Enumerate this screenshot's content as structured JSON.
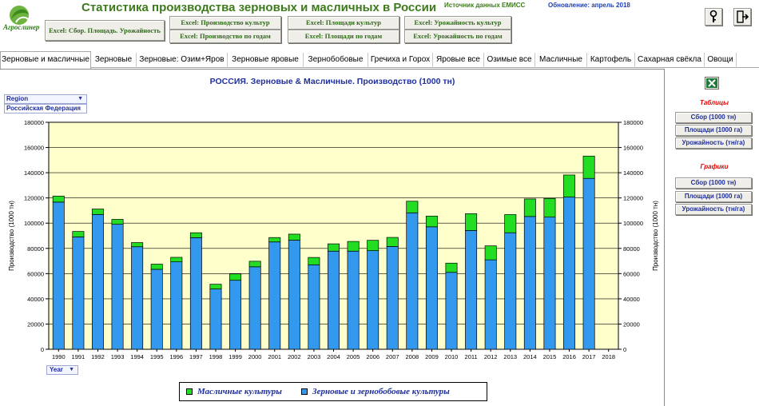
{
  "header": {
    "logo_text": "Агрослинер",
    "title": "Статистика производства зерновых и масличных в России",
    "source": "Источник данных ЕМИСС",
    "update": "Обновление: апрель 2018"
  },
  "excel_buttons": {
    "main": "Excel: Сбор. Площадь. Урожайность",
    "prod_crops": "Excel: Производство культур",
    "prod_years": "Excel: Производство по годам",
    "area_crops": "Excel: Площади культур",
    "area_years": "Excel: Площади по годам",
    "yield_crops": "Excel: Урожайность культур",
    "yield_years": "Excel: Урожайность по годам"
  },
  "toolbar": {
    "help_icon": "help-icon",
    "exit_icon": "exit-icon"
  },
  "tabs": [
    "Зерновые и масличные",
    "Зерновые",
    "Зерновые: Озим+Яров",
    "Зерновые яровые",
    "Зернобобовые",
    "Гречиха и Горох",
    "Яровые все",
    "Озимые все",
    "Масличные",
    "Картофель",
    "Сахарная свёкла",
    "Овощи"
  ],
  "active_tab": 0,
  "filters": {
    "region_label": "Region",
    "region_value": "Российская Федерация",
    "year_label": "Year"
  },
  "right_panel": {
    "tables_heading": "Таблицы",
    "charts_heading": "Графики",
    "tables_buttons": [
      "Сбор (1000 тн)",
      "Площади (1000 га)",
      "Урожайность (тн/га)"
    ],
    "charts_buttons": [
      "Сбор (1000 тн)",
      "Площади (1000 га)",
      "Урожайность (тн/га)"
    ]
  },
  "colors": {
    "grain": "#3399ee",
    "oil": "#22dd22",
    "plot_bg": "#ffffcc",
    "title": "#1f2f9c",
    "header_green": "#3d7a1c"
  },
  "chart_data": {
    "type": "bar",
    "stacked": true,
    "title": "РОССИЯ. Зерновые & Масличные. Производство (1000 тн)",
    "ylabel": "Производство (1000 тн)",
    "ylabel_right": "Производство (1000 тн)",
    "ylim": [
      0,
      180000
    ],
    "yticks": [
      0,
      20000,
      40000,
      60000,
      80000,
      100000,
      120000,
      140000,
      160000,
      180000
    ],
    "grid": true,
    "categories": [
      "1990",
      "1991",
      "1992",
      "1993",
      "1994",
      "1995",
      "1996",
      "1997",
      "1998",
      "1999",
      "2000",
      "2001",
      "2002",
      "2003",
      "2004",
      "2005",
      "2006",
      "2007",
      "2008",
      "2009",
      "2010",
      "2011",
      "2012",
      "2013",
      "2014",
      "2015",
      "2016",
      "2017",
      "2018"
    ],
    "series": [
      {
        "name": "Зерновые и зернобобовые культуры",
        "values": [
          116700,
          89100,
          106900,
          99100,
          81300,
          63400,
          69300,
          88500,
          47800,
          54700,
          65400,
          85100,
          86500,
          67000,
          77800,
          77800,
          78200,
          81500,
          108200,
          97100,
          61000,
          94200,
          70900,
          92400,
          105300,
          104800,
          120700,
          135500,
          0
        ]
      },
      {
        "name": "Масличные культуры",
        "values": [
          4800,
          4300,
          4300,
          3900,
          3300,
          4100,
          3600,
          3900,
          3800,
          5100,
          4400,
          3500,
          4800,
          5800,
          5800,
          7700,
          8200,
          7200,
          9200,
          8500,
          7300,
          13300,
          11100,
          14400,
          13900,
          14800,
          17500,
          17700,
          0
        ]
      }
    ],
    "legend": [
      "Масличные культуры",
      "Зерновые и зернобобовые культуры"
    ]
  }
}
